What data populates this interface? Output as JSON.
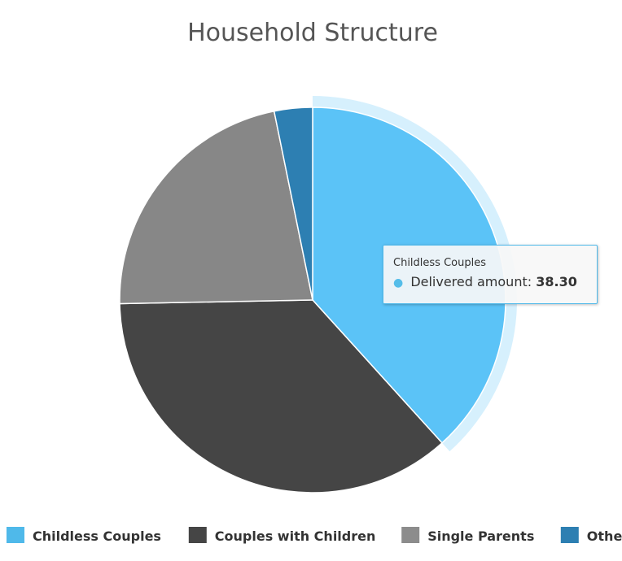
{
  "chart_data": {
    "type": "pie",
    "title": "Household Structure",
    "slices": [
      {
        "name": "Childless Couples",
        "value": 38.3,
        "color": "#5bc3f7",
        "legend_color": "#4fb9ea",
        "hovered": true
      },
      {
        "name": "Couples with Children",
        "value": 36.4,
        "color": "#454545",
        "legend_color": "#454545"
      },
      {
        "name": "Single Parents",
        "value": 22.1,
        "color": "#878787",
        "legend_color": "#8c8c8c"
      },
      {
        "name": "Other",
        "value": 3.2,
        "color": "#2d7fb2",
        "legend_color": "#2d7fb2"
      }
    ],
    "legend_position": "bottom"
  },
  "tooltip": {
    "series": "Childless Couples",
    "label": "Delivered amount:",
    "value": "38.30"
  }
}
